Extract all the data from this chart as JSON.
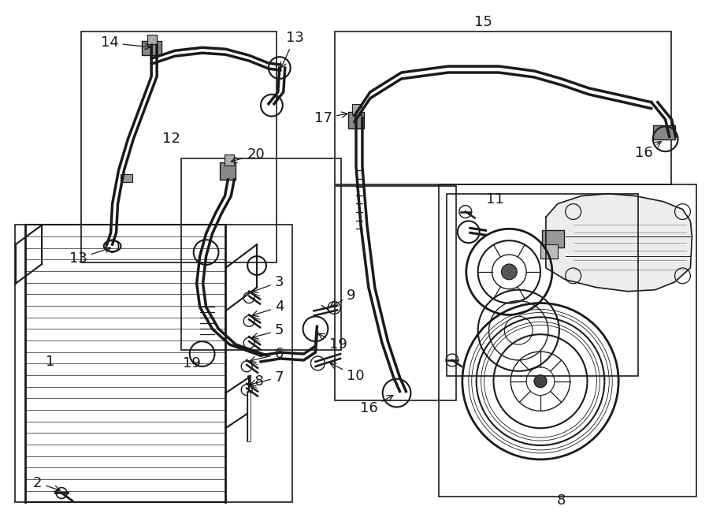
{
  "bg_color": "#ffffff",
  "line_color": "#1a1a1a",
  "label_fontsize": 13,
  "fig_width": 9.0,
  "fig_height": 6.61
}
